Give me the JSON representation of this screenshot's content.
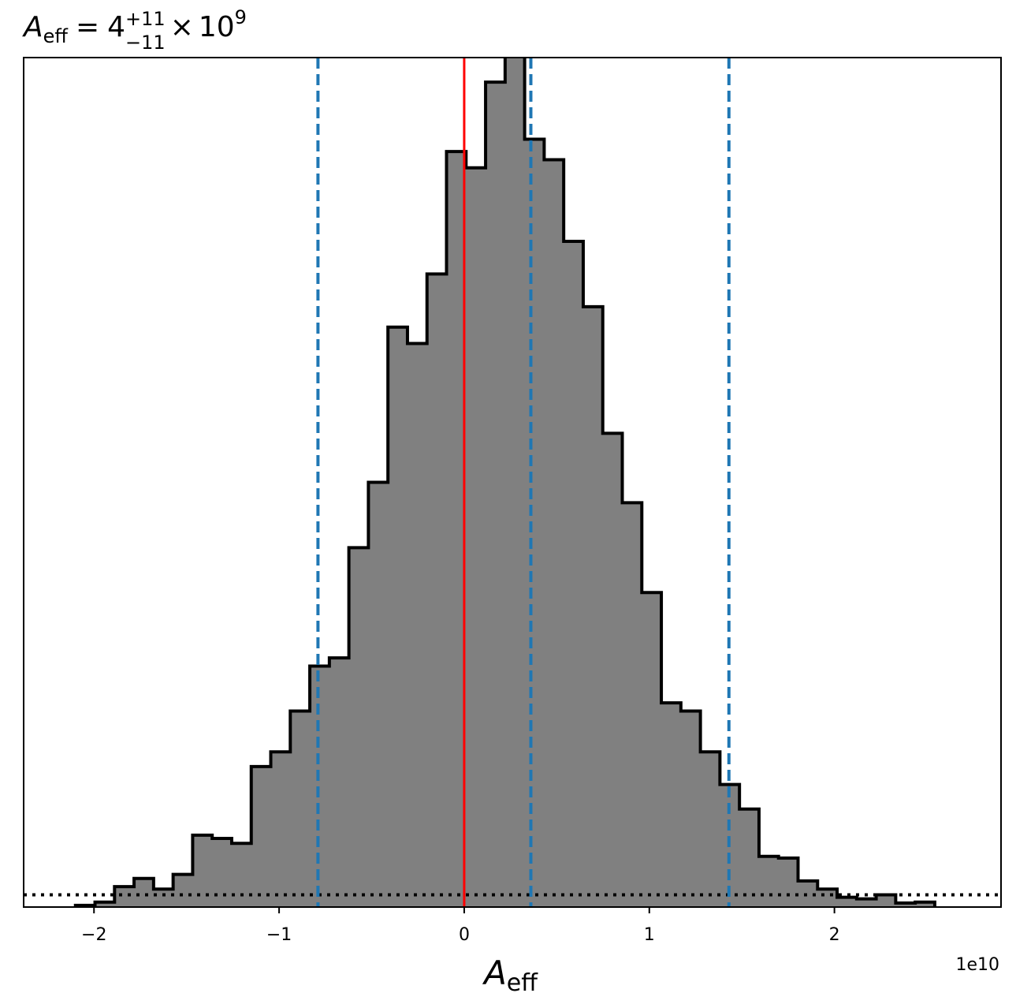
{
  "chart_data": {
    "type": "histogram",
    "title": {
      "var_base": "A",
      "var_sub": "eff",
      "equals": "=",
      "value": "4",
      "err_plus": "+11",
      "err_minus": "−11",
      "times": "×",
      "power_base": "10",
      "power_exp": "9"
    },
    "xlabel": {
      "base": "A",
      "sub": "eff"
    },
    "offset_label": "1e10",
    "x_unit_scale": 10000000000.0,
    "xlim": [
      -2.38,
      2.9
    ],
    "ylim": [
      0,
      1040
    ],
    "x_ticks": [
      {
        "value": -2,
        "label": "−2"
      },
      {
        "value": -1,
        "label": "−1"
      },
      {
        "value": 0,
        "label": "0"
      },
      {
        "value": 1,
        "label": "1"
      },
      {
        "value": 2,
        "label": "2"
      }
    ],
    "bin_start": -2.1,
    "bin_width": 0.1055,
    "counts": [
      2,
      6,
      25,
      35,
      22,
      40,
      88,
      84,
      78,
      172,
      190,
      240,
      295,
      305,
      440,
      520,
      710,
      690,
      775,
      925,
      905,
      1010,
      1055,
      940,
      915,
      815,
      735,
      580,
      495,
      385,
      250,
      240,
      190,
      150,
      120,
      62,
      60,
      32,
      22,
      12,
      10,
      15,
      5,
      6
    ],
    "hline": {
      "y": 15,
      "style": "dotted",
      "color": "#000000"
    },
    "vlines": [
      {
        "x": 0.0,
        "color": "#ff0000",
        "style": "solid"
      },
      {
        "x": -0.79,
        "color": "#1f77b4",
        "style": "dashed"
      },
      {
        "x": 0.36,
        "color": "#1f77b4",
        "style": "dashed"
      },
      {
        "x": 1.43,
        "color": "#1f77b4",
        "style": "dashed"
      }
    ],
    "fill_color": "#808080",
    "edge_color": "#000000"
  }
}
